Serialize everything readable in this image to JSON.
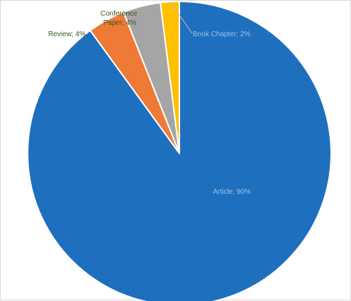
{
  "chart_data": {
    "type": "pie",
    "title": "",
    "categories": [
      "Article",
      "Review",
      "Conference Paper",
      "Book Chapter"
    ],
    "values": [
      90,
      4,
      4,
      2
    ],
    "unit": "%",
    "start_angle_deg": 0,
    "direction": "clockwise",
    "colors": [
      "#1F6FBF",
      "#EE7A36",
      "#A5A5A5",
      "#FFC000"
    ],
    "slice_border_color": "#FFFFFF",
    "legend": "none",
    "data_labels": [
      {
        "category": "Article",
        "text": "Article; 90%",
        "color": "#9DC3E6"
      },
      {
        "category": "Review",
        "text": "Review; 4%",
        "color": "#375623"
      },
      {
        "category": "Conference Paper",
        "lines": [
          "Conference",
          "Paper; 4%"
        ],
        "color": "#375623"
      },
      {
        "category": "Book Chapter",
        "text": "Book Chapter; 2%",
        "color": "#9DC3E6"
      }
    ]
  }
}
